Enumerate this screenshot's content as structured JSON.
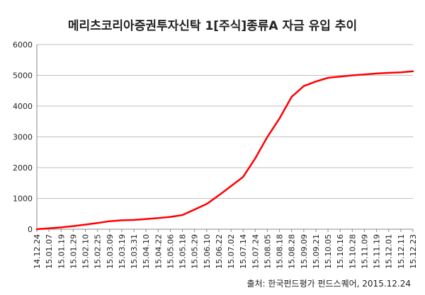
{
  "chart_data": {
    "type": "line",
    "title": "메리츠코리아증권투자신탁 1[주식]종류A  자금 유입 추이",
    "source": "출처: 한국펀드평가 펀드스퀘어, 2015.12.24",
    "xlabel": "",
    "ylabel": "",
    "ylim": [
      0,
      6000
    ],
    "yticks": [
      0,
      1000,
      2000,
      3000,
      4000,
      5000,
      6000
    ],
    "grid": true,
    "legend": "none",
    "line_color": "#ff0000",
    "categories": [
      "14.12.24",
      "15.01.07",
      "15.01.19",
      "15.01.29",
      "15.02.10",
      "15.02.25",
      "15.03.09",
      "15.03.19",
      "15.03.31",
      "15.04.10",
      "15.04.22",
      "15.05.06",
      "15.05.18",
      "15.05.29",
      "15.06.10",
      "15.06.22",
      "15.07.02",
      "15.07.14",
      "15.07.24",
      "15.08.05",
      "15.08.18",
      "15.08.28",
      "15.09.09",
      "15.09.21",
      "15.10.05",
      "15.10.16",
      "15.10.28",
      "15.11.09",
      "15.11.19",
      "15.12.01",
      "15.12.11",
      "15.12.23"
    ],
    "values": [
      0,
      30,
      60,
      100,
      150,
      200,
      260,
      290,
      300,
      330,
      360,
      400,
      460,
      640,
      820,
      1100,
      1400,
      1700,
      2300,
      3000,
      3600,
      4300,
      4650,
      4800,
      4920,
      4960,
      5000,
      5030,
      5060,
      5080,
      5100,
      5130
    ]
  }
}
